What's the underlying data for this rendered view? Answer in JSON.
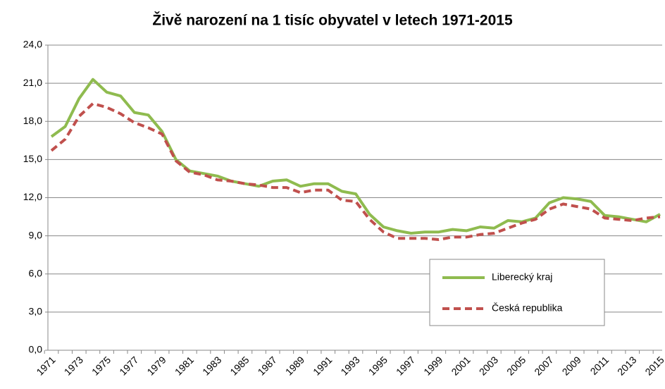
{
  "chart_data": {
    "type": "line",
    "title": "Živě narození na 1 tisíc obyvatel v letech 1971-2015",
    "categories": [
      "1971",
      null,
      "1973",
      null,
      "1975",
      null,
      "1977",
      null,
      "1979",
      null,
      "1981",
      null,
      "1983",
      null,
      "1985",
      null,
      "1987",
      null,
      "1989",
      null,
      "1991",
      null,
      "1993",
      null,
      "1995",
      null,
      "1997",
      null,
      "1999",
      null,
      "2001",
      null,
      "2003",
      null,
      "2005",
      null,
      "2007",
      null,
      "2009",
      null,
      "2011",
      null,
      "2013",
      null,
      "2015"
    ],
    "series": [
      {
        "name": "Liberecký kraj",
        "color": "#8fbb4f",
        "dashed": false,
        "values": [
          16.8,
          17.6,
          19.8,
          21.3,
          20.3,
          20.0,
          18.7,
          18.5,
          17.2,
          15.0,
          14.1,
          13.9,
          13.7,
          13.3,
          13.1,
          12.9,
          13.3,
          13.4,
          12.9,
          13.1,
          13.1,
          12.5,
          12.3,
          10.7,
          9.7,
          9.4,
          9.2,
          9.3,
          9.3,
          9.5,
          9.4,
          9.7,
          9.6,
          10.2,
          10.1,
          10.4,
          11.6,
          12.0,
          11.9,
          11.7,
          10.6,
          10.5,
          10.3,
          10.1,
          10.7
        ]
      },
      {
        "name": "Česká republika",
        "color": "#c0504d",
        "dashed": true,
        "values": [
          15.7,
          16.6,
          18.4,
          19.4,
          19.1,
          18.6,
          17.9,
          17.5,
          17.0,
          14.9,
          14.0,
          13.8,
          13.4,
          13.3,
          13.1,
          13.0,
          12.8,
          12.8,
          12.4,
          12.6,
          12.6,
          11.8,
          11.7,
          10.3,
          9.3,
          8.8,
          8.8,
          8.8,
          8.7,
          8.9,
          8.9,
          9.1,
          9.2,
          9.6,
          10.0,
          10.3,
          11.1,
          11.5,
          11.3,
          11.1,
          10.4,
          10.3,
          10.2,
          10.4,
          10.5
        ]
      }
    ],
    "ylim": [
      0,
      24
    ],
    "yticks": [
      {
        "value": 0,
        "label": "0,0"
      },
      {
        "value": 3,
        "label": "3,0"
      },
      {
        "value": 6,
        "label": "6,0"
      },
      {
        "value": 9,
        "label": "9,0"
      },
      {
        "value": 12,
        "label": "12,0"
      },
      {
        "value": 15,
        "label": "15,0"
      },
      {
        "value": 18,
        "label": "18,0"
      },
      {
        "value": 21,
        "label": "21,0"
      },
      {
        "value": 24,
        "label": "24,0"
      }
    ],
    "grid": true,
    "legend": "lower right"
  }
}
